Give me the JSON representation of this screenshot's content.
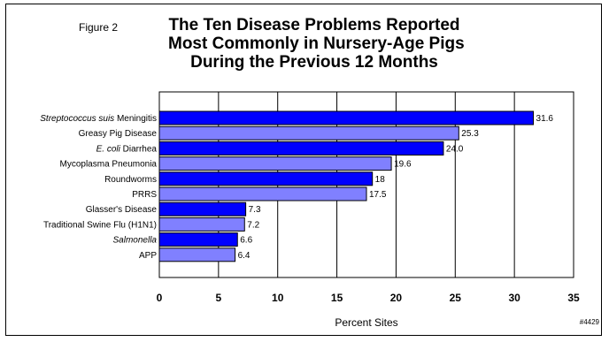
{
  "figure_label": "Figure 2",
  "title_lines": [
    "The Ten Disease Problems Reported",
    "Most Commonly in Nursery-Age Pigs",
    "During the Previous 12 Months"
  ],
  "ref_code": "#4429",
  "colors": {
    "bar_dark": "#0000ff",
    "bar_light": "#8080ff",
    "edge": "#000000",
    "grid": "#000000"
  },
  "chart_data": {
    "type": "bar",
    "orientation": "horizontal",
    "title": "The Ten Disease Problems Reported Most Commonly in Nursery-Age Pigs During the Previous 12 Months",
    "xlabel": "Percent Sites",
    "ylabel": "",
    "xlim": [
      0,
      35
    ],
    "xticks": [
      0,
      5,
      10,
      15,
      20,
      25,
      30,
      35
    ],
    "grid": true,
    "categories": [
      {
        "parts": [
          {
            "text": "Streptococcus suis",
            "italic": true
          },
          {
            "text": " Meningitis",
            "italic": false
          }
        ]
      },
      {
        "parts": [
          {
            "text": "Greasy Pig Disease",
            "italic": false
          }
        ]
      },
      {
        "parts": [
          {
            "text": "E. coli",
            "italic": true
          },
          {
            "text": " Diarrhea",
            "italic": false
          }
        ]
      },
      {
        "parts": [
          {
            "text": "Mycoplasma Pneumonia",
            "italic": false
          }
        ]
      },
      {
        "parts": [
          {
            "text": "Roundworms",
            "italic": false
          }
        ]
      },
      {
        "parts": [
          {
            "text": "PRRS",
            "italic": false
          }
        ]
      },
      {
        "parts": [
          {
            "text": "Glasser's Disease",
            "italic": false
          }
        ]
      },
      {
        "parts": [
          {
            "text": "Traditional Swine Flu (H1N1)",
            "italic": false
          }
        ]
      },
      {
        "parts": [
          {
            "text": "Salmonella",
            "italic": true
          }
        ]
      },
      {
        "parts": [
          {
            "text": "APP",
            "italic": false
          }
        ]
      }
    ],
    "values": [
      31.6,
      25.3,
      24.0,
      19.6,
      18,
      17.5,
      7.3,
      7.2,
      6.6,
      6.4
    ],
    "value_labels": [
      "31.6",
      "25.3",
      "24.0",
      "19.6",
      "18",
      "17.5",
      "7.3",
      "7.2",
      "6.6",
      "6.4"
    ],
    "bar_color_keys": [
      "bar_dark",
      "bar_light",
      "bar_dark",
      "bar_light",
      "bar_dark",
      "bar_light",
      "bar_dark",
      "bar_light",
      "bar_dark",
      "bar_light"
    ]
  }
}
